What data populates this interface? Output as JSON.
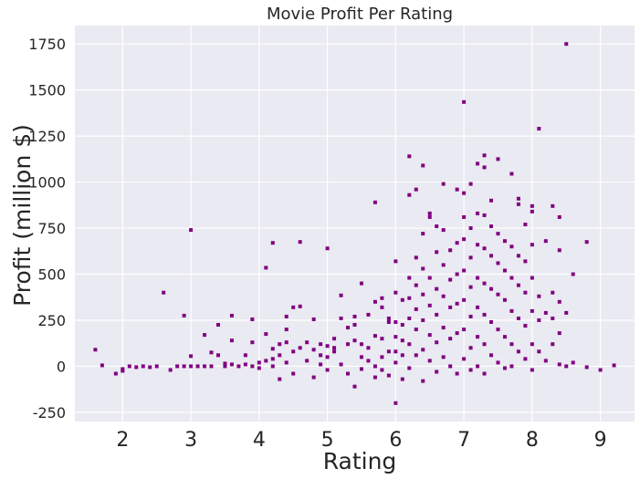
{
  "chart_data": {
    "type": "scatter",
    "title": "Movie Profit Per Rating",
    "xlabel": "Rating",
    "ylabel": "Profit (million $)",
    "xlim": [
      1.3,
      9.5
    ],
    "ylim": [
      -300,
      1850
    ],
    "xticks": [
      2,
      3,
      4,
      5,
      6,
      7,
      8,
      9
    ],
    "xtick_labels": [
      "2",
      "3",
      "4",
      "5",
      "6",
      "7",
      "8",
      "9"
    ],
    "yticks": [
      -250,
      0,
      250,
      500,
      750,
      1000,
      1250,
      1500,
      1750
    ],
    "ytick_labels": [
      "-250",
      "0",
      "250",
      "500",
      "750",
      "1000",
      "1250",
      "1500",
      "1750"
    ],
    "grid": true,
    "marker_color": "#800080",
    "background_color": "#eaeaf2",
    "grid_color": "#ffffff",
    "points": [
      [
        1.6,
        90
      ],
      [
        1.7,
        5
      ],
      [
        1.9,
        -40
      ],
      [
        2.0,
        -25
      ],
      [
        2.0,
        -15
      ],
      [
        2.1,
        0
      ],
      [
        2.2,
        -5
      ],
      [
        2.3,
        0
      ],
      [
        2.4,
        -5
      ],
      [
        2.5,
        0
      ],
      [
        2.6,
        400
      ],
      [
        2.7,
        -20
      ],
      [
        2.8,
        0
      ],
      [
        2.9,
        0
      ],
      [
        2.9,
        275
      ],
      [
        3.0,
        740
      ],
      [
        3.0,
        55
      ],
      [
        3.0,
        0
      ],
      [
        3.1,
        0
      ],
      [
        3.2,
        0
      ],
      [
        3.2,
        170
      ],
      [
        3.3,
        75
      ],
      [
        3.3,
        0
      ],
      [
        3.4,
        225
      ],
      [
        3.4,
        60
      ],
      [
        3.5,
        0
      ],
      [
        3.5,
        15
      ],
      [
        3.6,
        275
      ],
      [
        3.6,
        10
      ],
      [
        3.6,
        140
      ],
      [
        3.7,
        0
      ],
      [
        3.8,
        60
      ],
      [
        3.8,
        10
      ],
      [
        3.9,
        255
      ],
      [
        3.9,
        130
      ],
      [
        3.9,
        0
      ],
      [
        4.0,
        20
      ],
      [
        4.0,
        -10
      ],
      [
        4.1,
        535
      ],
      [
        4.1,
        175
      ],
      [
        4.1,
        30
      ],
      [
        4.2,
        670
      ],
      [
        4.2,
        95
      ],
      [
        4.2,
        40
      ],
      [
        4.2,
        0
      ],
      [
        4.3,
        120
      ],
      [
        4.3,
        60
      ],
      [
        4.3,
        -70
      ],
      [
        4.4,
        270
      ],
      [
        4.4,
        200
      ],
      [
        4.4,
        130
      ],
      [
        4.4,
        20
      ],
      [
        4.5,
        320
      ],
      [
        4.5,
        80
      ],
      [
        4.5,
        -40
      ],
      [
        4.6,
        675
      ],
      [
        4.6,
        325
      ],
      [
        4.6,
        100
      ],
      [
        4.7,
        130
      ],
      [
        4.7,
        30
      ],
      [
        4.8,
        255
      ],
      [
        4.8,
        90
      ],
      [
        4.8,
        -60
      ],
      [
        4.9,
        120
      ],
      [
        4.9,
        60
      ],
      [
        4.9,
        10
      ],
      [
        5.0,
        640
      ],
      [
        5.0,
        110
      ],
      [
        5.0,
        50
      ],
      [
        5.0,
        -20
      ],
      [
        5.1,
        150
      ],
      [
        5.1,
        100
      ],
      [
        5.1,
        80
      ],
      [
        5.2,
        385
      ],
      [
        5.2,
        260
      ],
      [
        5.2,
        10
      ],
      [
        5.3,
        210
      ],
      [
        5.3,
        120
      ],
      [
        5.3,
        -40
      ],
      [
        5.4,
        270
      ],
      [
        5.4,
        225
      ],
      [
        5.4,
        140
      ],
      [
        5.4,
        -110
      ],
      [
        5.5,
        450
      ],
      [
        5.5,
        120
      ],
      [
        5.5,
        50
      ],
      [
        5.5,
        -15
      ],
      [
        5.6,
        280
      ],
      [
        5.6,
        100
      ],
      [
        5.6,
        30
      ],
      [
        5.7,
        890
      ],
      [
        5.7,
        350
      ],
      [
        5.7,
        165
      ],
      [
        5.7,
        0
      ],
      [
        5.7,
        -60
      ],
      [
        5.8,
        370
      ],
      [
        5.8,
        320
      ],
      [
        5.8,
        150
      ],
      [
        5.8,
        50
      ],
      [
        5.8,
        -20
      ],
      [
        5.9,
        260
      ],
      [
        5.9,
        240
      ],
      [
        5.9,
        80
      ],
      [
        5.9,
        -50
      ],
      [
        6.0,
        570
      ],
      [
        6.0,
        400
      ],
      [
        6.0,
        240
      ],
      [
        6.0,
        160
      ],
      [
        6.0,
        80
      ],
      [
        6.0,
        20
      ],
      [
        6.0,
        -200
      ],
      [
        6.1,
        360
      ],
      [
        6.1,
        225
      ],
      [
        6.1,
        140
      ],
      [
        6.1,
        60
      ],
      [
        6.1,
        -70
      ],
      [
        6.2,
        1140
      ],
      [
        6.2,
        930
      ],
      [
        6.2,
        480
      ],
      [
        6.2,
        370
      ],
      [
        6.2,
        260
      ],
      [
        6.2,
        120
      ],
      [
        6.2,
        -10
      ],
      [
        6.3,
        960
      ],
      [
        6.3,
        590
      ],
      [
        6.3,
        440
      ],
      [
        6.3,
        310
      ],
      [
        6.3,
        200
      ],
      [
        6.3,
        60
      ],
      [
        6.4,
        1090
      ],
      [
        6.4,
        720
      ],
      [
        6.4,
        530
      ],
      [
        6.4,
        390
      ],
      [
        6.4,
        250
      ],
      [
        6.4,
        90
      ],
      [
        6.4,
        -80
      ],
      [
        6.5,
        830
      ],
      [
        6.5,
        810
      ],
      [
        6.5,
        480
      ],
      [
        6.5,
        330
      ],
      [
        6.5,
        170
      ],
      [
        6.5,
        30
      ],
      [
        6.6,
        760
      ],
      [
        6.6,
        620
      ],
      [
        6.6,
        420
      ],
      [
        6.6,
        280
      ],
      [
        6.6,
        130
      ],
      [
        6.6,
        -30
      ],
      [
        6.7,
        990
      ],
      [
        6.7,
        740
      ],
      [
        6.7,
        550
      ],
      [
        6.7,
        380
      ],
      [
        6.7,
        210
      ],
      [
        6.7,
        50
      ],
      [
        6.8,
        630
      ],
      [
        6.8,
        470
      ],
      [
        6.8,
        320
      ],
      [
        6.8,
        150
      ],
      [
        6.8,
        0
      ],
      [
        6.9,
        960
      ],
      [
        6.9,
        670
      ],
      [
        6.9,
        500
      ],
      [
        6.9,
        340
      ],
      [
        6.9,
        180
      ],
      [
        6.9,
        -40
      ],
      [
        7.0,
        1435
      ],
      [
        7.0,
        940
      ],
      [
        7.0,
        810
      ],
      [
        7.0,
        690
      ],
      [
        7.0,
        520
      ],
      [
        7.0,
        360
      ],
      [
        7.0,
        200
      ],
      [
        7.0,
        40
      ],
      [
        7.1,
        990
      ],
      [
        7.1,
        750
      ],
      [
        7.1,
        590
      ],
      [
        7.1,
        430
      ],
      [
        7.1,
        270
      ],
      [
        7.1,
        100
      ],
      [
        7.1,
        -20
      ],
      [
        7.2,
        1100
      ],
      [
        7.2,
        830
      ],
      [
        7.2,
        660
      ],
      [
        7.2,
        480
      ],
      [
        7.2,
        320
      ],
      [
        7.2,
        160
      ],
      [
        7.2,
        0
      ],
      [
        7.3,
        1145
      ],
      [
        7.3,
        1080
      ],
      [
        7.3,
        820
      ],
      [
        7.3,
        640
      ],
      [
        7.3,
        450
      ],
      [
        7.3,
        280
      ],
      [
        7.3,
        120
      ],
      [
        7.3,
        -40
      ],
      [
        7.4,
        900
      ],
      [
        7.4,
        760
      ],
      [
        7.4,
        600
      ],
      [
        7.4,
        420
      ],
      [
        7.4,
        240
      ],
      [
        7.4,
        60
      ],
      [
        7.5,
        1125
      ],
      [
        7.5,
        720
      ],
      [
        7.5,
        560
      ],
      [
        7.5,
        390
      ],
      [
        7.5,
        200
      ],
      [
        7.5,
        20
      ],
      [
        7.6,
        680
      ],
      [
        7.6,
        520
      ],
      [
        7.6,
        360
      ],
      [
        7.6,
        160
      ],
      [
        7.6,
        -10
      ],
      [
        7.7,
        1045
      ],
      [
        7.7,
        650
      ],
      [
        7.7,
        480
      ],
      [
        7.7,
        300
      ],
      [
        7.7,
        120
      ],
      [
        7.7,
        0
      ],
      [
        7.8,
        910
      ],
      [
        7.8,
        880
      ],
      [
        7.8,
        600
      ],
      [
        7.8,
        440
      ],
      [
        7.8,
        260
      ],
      [
        7.8,
        80
      ],
      [
        7.9,
        770
      ],
      [
        7.9,
        570
      ],
      [
        7.9,
        400
      ],
      [
        7.9,
        220
      ],
      [
        7.9,
        40
      ],
      [
        8.0,
        870
      ],
      [
        8.0,
        840
      ],
      [
        8.0,
        660
      ],
      [
        8.0,
        480
      ],
      [
        8.0,
        300
      ],
      [
        8.0,
        120
      ],
      [
        8.0,
        -20
      ],
      [
        8.1,
        1290
      ],
      [
        8.1,
        380
      ],
      [
        8.1,
        250
      ],
      [
        8.1,
        80
      ],
      [
        8.2,
        680
      ],
      [
        8.2,
        290
      ],
      [
        8.2,
        30
      ],
      [
        8.3,
        870
      ],
      [
        8.3,
        400
      ],
      [
        8.3,
        260
      ],
      [
        8.3,
        120
      ],
      [
        8.4,
        810
      ],
      [
        8.4,
        630
      ],
      [
        8.4,
        350
      ],
      [
        8.4,
        180
      ],
      [
        8.4,
        10
      ],
      [
        8.5,
        1750
      ],
      [
        8.5,
        290
      ],
      [
        8.5,
        0
      ],
      [
        8.6,
        500
      ],
      [
        8.6,
        20
      ],
      [
        8.8,
        675
      ],
      [
        8.8,
        -5
      ],
      [
        9.0,
        -20
      ],
      [
        9.2,
        5
      ]
    ]
  }
}
